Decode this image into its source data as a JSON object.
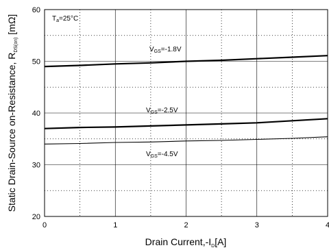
{
  "chart_data": {
    "type": "line",
    "xlabel": {
      "main": "Drain Current,-I",
      "sub": "D",
      "tail": "[A]"
    },
    "ylabel": {
      "main": "Static Drain-Source on-Resistance, R",
      "sub": "DS(on)",
      "tail": " [mΩ]"
    },
    "xlim": [
      0,
      4
    ],
    "ylim": [
      20,
      60
    ],
    "xticks": [
      "0",
      "1",
      "2",
      "3",
      "4"
    ],
    "yticks": [
      "20",
      "30",
      "40",
      "50",
      "60"
    ],
    "grid": true,
    "condition": {
      "main": "T",
      "sub": "a",
      "tail": "=25°C"
    },
    "series": [
      {
        "label": {
          "main": "V",
          "sub": "GS",
          "tail": "=-1.8V"
        },
        "x": [
          0,
          0.5,
          1,
          1.5,
          2,
          2.5,
          3,
          3.5,
          4
        ],
        "values": [
          49.0,
          49.2,
          49.5,
          49.7,
          50.0,
          50.2,
          50.5,
          50.8,
          51.1
        ]
      },
      {
        "label": {
          "main": "V",
          "sub": "GS",
          "tail": "=-2.5V"
        },
        "x": [
          0,
          0.5,
          1,
          1.5,
          2,
          2.5,
          3,
          3.5,
          4
        ],
        "values": [
          37.0,
          37.2,
          37.3,
          37.5,
          37.7,
          37.9,
          38.1,
          38.5,
          38.9
        ]
      },
      {
        "label": {
          "main": "V",
          "sub": "GS",
          "tail": "=-4.5V"
        },
        "x": [
          0,
          0.5,
          1,
          1.5,
          2,
          2.5,
          3,
          3.5,
          4
        ],
        "values": [
          34.0,
          34.1,
          34.3,
          34.4,
          34.6,
          34.7,
          34.9,
          35.1,
          35.4
        ]
      }
    ]
  }
}
